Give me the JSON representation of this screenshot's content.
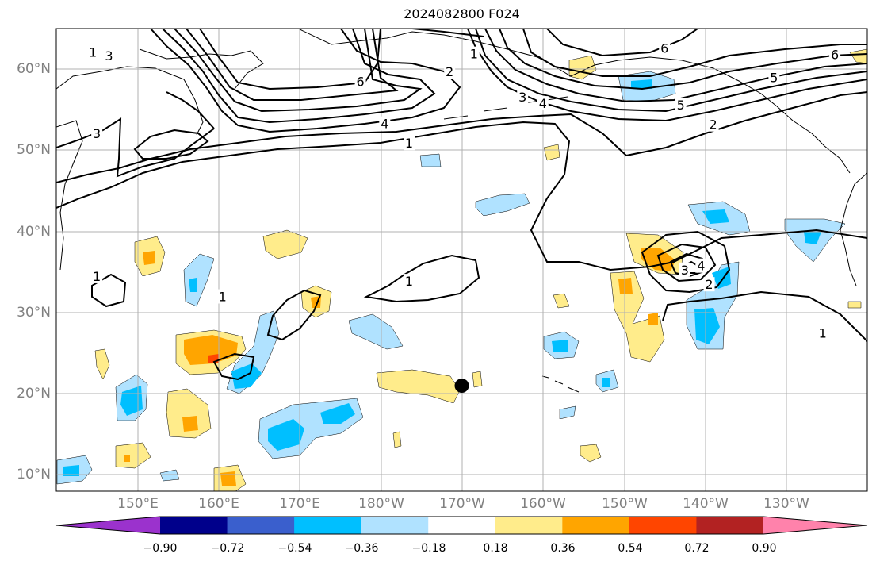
{
  "title": "2024082800 F024",
  "map": {
    "lat_labels": [
      "60°N",
      "50°N",
      "40°N",
      "30°N",
      "20°N",
      "10°N"
    ],
    "lon_labels": [
      "150°E",
      "160°E",
      "170°E",
      "180°W",
      "170°W",
      "160°W",
      "150°W",
      "140°W",
      "130°W"
    ],
    "extent": {
      "lon_min": 140,
      "lon_max": 240,
      "lat_min": 8,
      "lat_max": 65
    },
    "marker": {
      "lon": 190,
      "lat": 21,
      "symbol": "filled-circle"
    }
  },
  "contours": {
    "color": "#000000",
    "levels_labeled": [
      {
        "text": "1",
        "lon": 144.5,
        "lat": 62.1
      },
      {
        "text": "3",
        "lon": 146.5,
        "lat": 61.7
      },
      {
        "text": "3",
        "lon": 145.0,
        "lat": 52.1
      },
      {
        "text": "6",
        "lon": 177.5,
        "lat": 58.5
      },
      {
        "text": "4",
        "lon": 180.5,
        "lat": 53.3
      },
      {
        "text": "1",
        "lon": 183.5,
        "lat": 50.9
      },
      {
        "text": "2",
        "lon": 188.5,
        "lat": 59.7
      },
      {
        "text": "1",
        "lon": 191.5,
        "lat": 61.9
      },
      {
        "text": "3",
        "lon": 197.5,
        "lat": 56.6
      },
      {
        "text": "4",
        "lon": 200.0,
        "lat": 55.8
      },
      {
        "text": "6",
        "lon": 215.0,
        "lat": 62.6
      },
      {
        "text": "5",
        "lon": 217.0,
        "lat": 55.6
      },
      {
        "text": "2",
        "lon": 221.0,
        "lat": 53.2
      },
      {
        "text": "6",
        "lon": 236.0,
        "lat": 61.8
      },
      {
        "text": "5",
        "lon": 228.5,
        "lat": 59.0
      },
      {
        "text": "1",
        "lon": 234.5,
        "lat": 27.5
      },
      {
        "text": "1",
        "lon": 183.5,
        "lat": 33.9
      },
      {
        "text": "1",
        "lon": 160.5,
        "lat": 32.0
      },
      {
        "text": "1",
        "lon": 145.0,
        "lat": 34.5
      },
      {
        "text": "3",
        "lon": 217.5,
        "lat": 35.3
      },
      {
        "text": "4",
        "lon": 219.5,
        "lat": 35.8
      },
      {
        "text": "2",
        "lon": 220.5,
        "lat": 33.5
      }
    ]
  },
  "colorbar": {
    "colors": [
      "#9b32cd",
      "#00008b",
      "#3a5fcd",
      "#00bfff",
      "#b0e2ff",
      "#ffffff",
      "#ffec8b",
      "#ffa500",
      "#ff4500",
      "#b22222",
      "#ff82ab"
    ],
    "ticks": [
      "−0.90",
      "−0.72",
      "−0.54",
      "−0.36",
      "−0.18",
      "0.18",
      "0.36",
      "0.54",
      "0.72",
      "0.90"
    ]
  }
}
